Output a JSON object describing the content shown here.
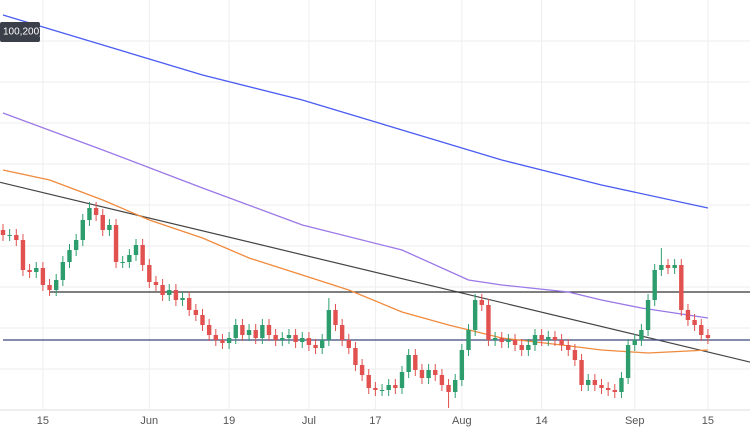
{
  "chart_data": {
    "type": "candlestick",
    "indicator_label": "100,200)",
    "categories": [
      null,
      null,
      null,
      null,
      null,
      null,
      "15",
      null,
      null,
      null,
      null,
      null,
      null,
      null,
      null,
      null,
      null,
      null,
      null,
      null,
      null,
      null,
      "Jun",
      null,
      null,
      null,
      null,
      null,
      null,
      null,
      null,
      null,
      null,
      null,
      "19",
      null,
      null,
      null,
      null,
      null,
      null,
      null,
      null,
      null,
      null,
      null,
      "Jul",
      null,
      null,
      null,
      null,
      null,
      null,
      null,
      null,
      null,
      "17",
      null,
      null,
      null,
      null,
      null,
      null,
      null,
      null,
      null,
      null,
      null,
      null,
      "Aug",
      null,
      null,
      null,
      null,
      null,
      null,
      null,
      null,
      null,
      null,
      null,
      "14",
      null,
      null,
      null,
      null,
      null,
      null,
      null,
      null,
      null,
      null,
      null,
      null,
      null,
      "Sep",
      null,
      null,
      null,
      null,
      null,
      null,
      null,
      null,
      null,
      null,
      "15"
    ],
    "open": [
      18,
      17.5,
      17.5,
      17,
      14,
      13.8,
      14.2,
      12.5,
      12,
      13,
      14.8,
      16,
      17,
      19,
      20.2,
      19.5,
      18,
      18.5,
      14.8,
      14.8,
      15.5,
      16.5,
      14.5,
      12.8,
      12.5,
      11.5,
      12,
      11,
      11.2,
      10,
      9.5,
      8.5,
      7.5,
      7,
      6.7,
      7.2,
      8.5,
      7.5,
      8,
      7.2,
      8.5,
      7.5,
      7,
      7.2,
      7.5,
      6.8,
      7.2,
      6.5,
      6.2,
      7,
      10,
      8.5,
      7,
      6.2,
      4.5,
      3.5,
      2.2,
      2,
      2,
      2.5,
      2.2,
      3.8,
      5.5,
      4,
      3.2,
      4,
      3.5,
      2.5,
      1.8,
      3,
      6,
      8,
      11,
      10.5,
      7,
      7.2,
      6.8,
      7,
      6.5,
      6,
      6.5,
      7.5,
      7,
      7.3,
      7,
      6.5,
      6,
      5,
      2.5,
      3,
      2.5,
      2.2,
      2,
      1.8,
      3.2,
      6.5,
      7,
      8,
      11,
      14,
      14.5,
      14.2,
      14.5,
      10,
      9,
      8.5,
      7.5
    ],
    "high": [
      18.6,
      18.1,
      18.1,
      17.6,
      14.6,
      14.8,
      14.8,
      13.1,
      13.6,
      15.4,
      16.6,
      17.6,
      19.6,
      20.8,
      20.8,
      20.1,
      19.1,
      19.1,
      15.4,
      16.1,
      17.1,
      17.1,
      15.1,
      13.4,
      13.1,
      12.6,
      12.6,
      11.8,
      11.8,
      10.6,
      10.1,
      9.1,
      8.1,
      7.6,
      7.8,
      9.1,
      9.1,
      8.6,
      8.6,
      9.1,
      9.1,
      8.1,
      7.8,
      8.1,
      8.1,
      7.8,
      7.8,
      7.1,
      7.6,
      11.2,
      10.6,
      9.1,
      7.6,
      6.8,
      5.1,
      4.1,
      2.8,
      2.6,
      3.1,
      3.1,
      4.4,
      6.1,
      6.1,
      4.6,
      4.6,
      4.6,
      4.1,
      3.1,
      3.6,
      6.6,
      8.6,
      11.6,
      11.6,
      11.1,
      7.8,
      7.8,
      7.6,
      7.6,
      7.1,
      7.1,
      8.1,
      8.1,
      7.9,
      7.9,
      7.6,
      7.1,
      6.6,
      5.6,
      3.6,
      3.6,
      3.1,
      2.8,
      2.6,
      3.8,
      7.1,
      7.6,
      8.6,
      11.6,
      14.6,
      16.2,
      15.1,
      15.1,
      15.1,
      10.6,
      9.6,
      9.1,
      8.1
    ],
    "low": [
      16.9,
      16.9,
      16.4,
      13.4,
      13.2,
      13.2,
      11.9,
      11.4,
      11.4,
      12.4,
      14.2,
      15.4,
      16.4,
      18.4,
      18.9,
      17.4,
      17.4,
      14.2,
      14.2,
      14.2,
      14.9,
      13.9,
      12.2,
      11.9,
      10.9,
      10.9,
      10.4,
      10.4,
      9.4,
      8.9,
      7.9,
      6.9,
      6.4,
      6.1,
      6.1,
      6.6,
      6.9,
      6.9,
      6.6,
      6.6,
      6.9,
      6.4,
      6.4,
      6.6,
      6.2,
      6.2,
      5.9,
      5.6,
      5.6,
      6.4,
      7.9,
      6.4,
      5.6,
      3.9,
      2.9,
      1.6,
      1.4,
      1.4,
      1.4,
      1.6,
      1.6,
      3.2,
      3.4,
      2.6,
      2.6,
      2.9,
      1.9,
      0.2,
      1.2,
      2.4,
      5.4,
      7.4,
      9.9,
      6.4,
      6.4,
      6.2,
      6.2,
      5.9,
      5.4,
      5.4,
      5.9,
      6.4,
      6.4,
      6.4,
      5.9,
      5.4,
      4.4,
      1.9,
      1.9,
      1.9,
      1.6,
      1.4,
      1.2,
      1.2,
      2.6,
      5.9,
      6.4,
      7.4,
      10.4,
      13.4,
      13.6,
      13.6,
      9.4,
      8.4,
      7.9,
      6.9,
      6.6
    ],
    "close": [
      17.5,
      17.5,
      17,
      14,
      13.8,
      14.2,
      12.5,
      12,
      13,
      14.8,
      16,
      17,
      19,
      20.2,
      19.5,
      18,
      18.5,
      14.8,
      14.8,
      15.5,
      16.5,
      14.5,
      12.8,
      12.5,
      11.5,
      12,
      11,
      11.2,
      10,
      9.5,
      8.5,
      7.5,
      7,
      6.7,
      7.2,
      8.5,
      7.5,
      8,
      7.2,
      8.5,
      7.5,
      7,
      7.2,
      7.5,
      6.8,
      7.2,
      6.5,
      6.2,
      7,
      10,
      8.5,
      7,
      6.2,
      4.5,
      3.5,
      2.2,
      2,
      2,
      2.5,
      2.2,
      3.8,
      5.5,
      4,
      3.2,
      4,
      3.5,
      2.5,
      1.8,
      3,
      6,
      8,
      11,
      10.5,
      7,
      7.2,
      6.8,
      7,
      6.5,
      6,
      6.5,
      7.5,
      7,
      7.3,
      7,
      6.5,
      6,
      5,
      2.5,
      3,
      2.5,
      2.2,
      2,
      1.8,
      3.2,
      6.5,
      7,
      8,
      11,
      14,
      14.5,
      14.2,
      14.5,
      10,
      9,
      8.5,
      7.5,
      7.2
    ],
    "up_color": "#2e9d6e",
    "down_color": "#e0514f",
    "moving_averages": [
      {
        "color": "#4a5cf0",
        "x": [
          0,
          15,
          30,
          45,
          60,
          75,
          90,
          106
        ],
        "values": [
          39.5,
          36.5,
          33.5,
          31,
          28,
          25,
          22.5,
          20.2
        ]
      },
      {
        "color": "#9a78e6",
        "x": [
          0,
          15,
          30,
          45,
          60,
          70,
          75,
          85,
          90,
          96,
          106
        ],
        "values": [
          29.7,
          26,
          22.2,
          18.5,
          16,
          13,
          12.5,
          11.8,
          11,
          10.2,
          9.2
        ]
      },
      {
        "color": "#f08a3c",
        "x": [
          0,
          7,
          15,
          22,
          30,
          37,
          45,
          52,
          60,
          67,
          75,
          84,
          90,
          97,
          106
        ],
        "values": [
          24,
          23,
          21,
          19,
          17.2,
          15.2,
          13.5,
          12,
          9.8,
          8.5,
          7.2,
          6.5,
          6,
          5.7,
          6
        ]
      }
    ],
    "horizontal_lines": [
      {
        "value": 11.8,
        "from": 7,
        "color": "#333333"
      },
      {
        "value": 7,
        "from": 0,
        "color": "#3a4a7a"
      }
    ],
    "trendline": {
      "x": [
        0,
        106
      ],
      "values": [
        22.7,
        5.8
      ],
      "color": "#444444"
    },
    "ylim": [
      0,
      41
    ],
    "grid": true
  }
}
